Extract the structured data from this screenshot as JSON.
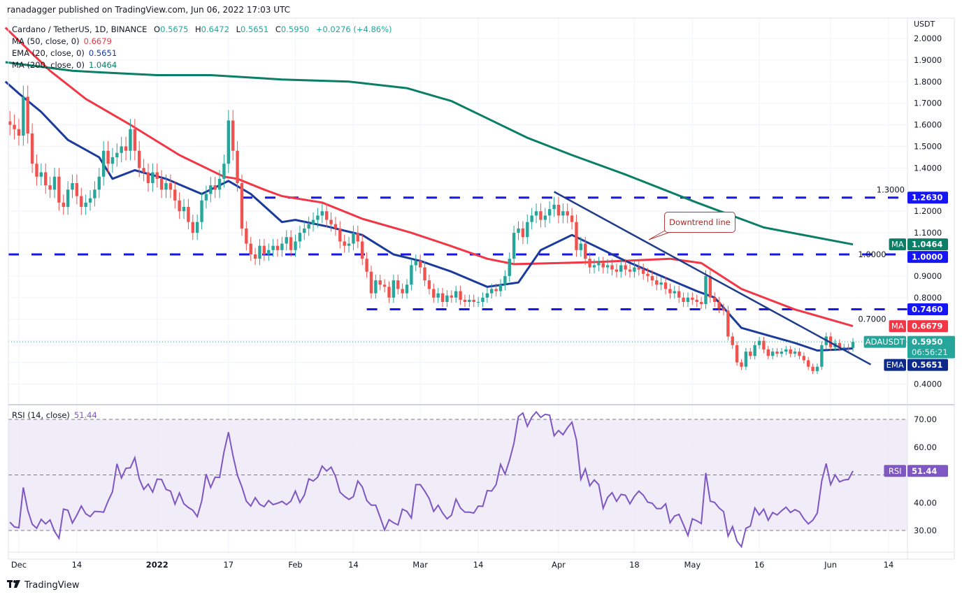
{
  "header": {
    "published": "ranadagger published on TradingView.com, Jun 06, 2022 17:03 UTC",
    "symbol": "Cardano / TetherUS, 1D, BINANCE",
    "open_label": "O",
    "open": "0.5675",
    "high_label": "H",
    "high": "0.6472",
    "low_label": "L",
    "low": "0.5651",
    "close_label": "C",
    "close": "0.5950",
    "change": "+0.0276 (+4.86%)"
  },
  "legend": [
    {
      "label": "MA (50, close, 0)",
      "value": "0.6679",
      "color": "#f23645"
    },
    {
      "label": "EMA (20, close, 0)",
      "value": "0.5651",
      "color": "#1a3a9c"
    },
    {
      "label": "MA (200, close, 0)",
      "value": "1.0464",
      "color": "#0b7e67"
    }
  ],
  "price_axis": {
    "unit": "USDT",
    "ticks": [
      "2.0000",
      "1.9000",
      "1.8000",
      "1.7000",
      "1.6000",
      "1.5000",
      "1.4000",
      "1.3000",
      "1.2000",
      "1.1000",
      "1.0000",
      "0.9000",
      "0.8000",
      "0.7000",
      "0.4000"
    ]
  },
  "price_tags": [
    {
      "name": "level-1263",
      "value": "1.2630",
      "price": 1.263,
      "color": "#1515f5"
    },
    {
      "name": "ma200",
      "label": "MA",
      "value": "1.0464",
      "price": 1.0464,
      "color": "#0b7e67"
    },
    {
      "name": "level-1000",
      "value": "1.0000",
      "price": 1.0,
      "color": "#1515f5"
    },
    {
      "name": "level-0746",
      "value": "0.7460",
      "price": 0.746,
      "color": "#1515f5"
    },
    {
      "name": "ma50",
      "label": "MA",
      "value": "0.6679",
      "price": 0.6679,
      "color": "#f23645"
    },
    {
      "name": "last-price",
      "label": "ADAUSDT",
      "value": "0.5950",
      "countdown": "06:56:21",
      "price": 0.595,
      "color": "#26a69a"
    },
    {
      "name": "ema20",
      "label": "EMA",
      "value": "0.5651",
      "price": 0.5651,
      "color": "#0d2a8a"
    }
  ],
  "x_axis": {
    "ticks": [
      {
        "label": "Dec",
        "date": "2021-12-01"
      },
      {
        "label": "14",
        "date": "2021-12-14"
      },
      {
        "label": "2022",
        "date": "2022-01-01",
        "bold": true
      },
      {
        "label": "17",
        "date": "2022-01-17"
      },
      {
        "label": "Feb",
        "date": "2022-02-01"
      },
      {
        "label": "14",
        "date": "2022-02-14"
      },
      {
        "label": "Mar",
        "date": "2022-03-01"
      },
      {
        "label": "14",
        "date": "2022-03-14"
      },
      {
        "label": "Apr",
        "date": "2022-04-01"
      },
      {
        "label": "18",
        "date": "2022-04-18"
      },
      {
        "label": "May",
        "date": "2022-05-01"
      },
      {
        "label": "16",
        "date": "2022-05-16"
      },
      {
        "label": "Jun",
        "date": "2022-06-01"
      },
      {
        "label": "14",
        "date": "2022-06-14"
      }
    ]
  },
  "rsi": {
    "label": "RSI (14, close)",
    "value": "51.44",
    "ticks": [
      "70.00",
      "60.00",
      "40.00",
      "30.00"
    ],
    "tag_label": "RSI",
    "color": "#7e57c2"
  },
  "annotation": {
    "text": "Downtrend line"
  },
  "footer": {
    "logo_mark": "17",
    "logo_text": "TradingView"
  },
  "colors": {
    "up": "#26a69a",
    "down": "#ef5350",
    "level": "#1515f5",
    "trendline": "#1f3c88",
    "rsi_band": "#ede9f7"
  },
  "chart_data": {
    "type": "candlestick",
    "interval": "1D",
    "first_date": "2021-11-29",
    "ylim": [
      0.35,
      2.05
    ],
    "closes": [
      1.6,
      1.58,
      1.55,
      1.73,
      1.56,
      1.42,
      1.36,
      1.38,
      1.32,
      1.3,
      1.36,
      1.24,
      1.22,
      1.3,
      1.33,
      1.27,
      1.22,
      1.24,
      1.26,
      1.3,
      1.36,
      1.48,
      1.42,
      1.45,
      1.47,
      1.5,
      1.48,
      1.58,
      1.48,
      1.4,
      1.38,
      1.33,
      1.38,
      1.35,
      1.3,
      1.33,
      1.3,
      1.25,
      1.2,
      1.22,
      1.15,
      1.1,
      1.15,
      1.25,
      1.28,
      1.32,
      1.3,
      1.35,
      1.42,
      1.62,
      1.48,
      1.33,
      1.12,
      1.05,
      1.0,
      0.98,
      1.04,
      1.0,
      1.02,
      1.04,
      1.02,
      1.05,
      1.08,
      1.02,
      1.06,
      1.1,
      1.12,
      1.14,
      1.16,
      1.18,
      1.2,
      1.16,
      1.14,
      1.12,
      1.06,
      1.04,
      1.05,
      1.1,
      1.06,
      0.98,
      0.92,
      0.82,
      0.88,
      0.86,
      0.85,
      0.8,
      0.88,
      0.84,
      0.82,
      0.86,
      0.95,
      0.97,
      0.94,
      0.88,
      0.84,
      0.8,
      0.82,
      0.78,
      0.81,
      0.8,
      0.83,
      0.79,
      0.78,
      0.79,
      0.78,
      0.78,
      0.8,
      0.82,
      0.84,
      0.83,
      0.86,
      0.9,
      0.98,
      1.1,
      1.12,
      1.08,
      1.15,
      1.18,
      1.2,
      1.16,
      1.18,
      1.21,
      1.23,
      1.18,
      1.2,
      1.18,
      1.15,
      1.02,
      1.05,
      0.98,
      0.94,
      0.95,
      0.96,
      0.94,
      0.95,
      0.93,
      0.92,
      0.95,
      0.93,
      0.92,
      0.94,
      0.93,
      0.91,
      0.9,
      0.88,
      0.86,
      0.87,
      0.84,
      0.82,
      0.83,
      0.8,
      0.78,
      0.8,
      0.79,
      0.78,
      0.77,
      0.9,
      0.8,
      0.78,
      0.75,
      0.74,
      0.62,
      0.58,
      0.5,
      0.48,
      0.55,
      0.53,
      0.58,
      0.6,
      0.56,
      0.53,
      0.55,
      0.54,
      0.55,
      0.56,
      0.54,
      0.55,
      0.53,
      0.51,
      0.48,
      0.46,
      0.48,
      0.58,
      0.62,
      0.57,
      0.59,
      0.57,
      0.57,
      0.5675,
      0.595
    ],
    "lines": [
      {
        "name": "MA (50, close, 0)",
        "color": "#f23645",
        "points": [
          [
            "2021-11-28",
            2.05
          ],
          [
            "2021-12-08",
            1.85
          ],
          [
            "2021-12-16",
            1.72
          ],
          [
            "2021-12-26",
            1.6
          ],
          [
            "2022-01-06",
            1.46
          ],
          [
            "2022-01-16",
            1.36
          ],
          [
            "2022-01-19",
            1.35
          ],
          [
            "2022-01-25",
            1.3
          ],
          [
            "2022-01-29",
            1.27
          ],
          [
            "2022-02-07",
            1.24
          ],
          [
            "2022-02-16",
            1.165
          ],
          [
            "2022-02-27",
            1.1
          ],
          [
            "2022-03-07",
            1.045
          ],
          [
            "2022-03-16",
            0.98
          ],
          [
            "2022-03-22",
            0.955
          ],
          [
            "2022-04-01",
            0.96
          ],
          [
            "2022-04-10",
            0.965
          ],
          [
            "2022-04-26",
            0.98
          ],
          [
            "2022-05-03",
            0.96
          ],
          [
            "2022-05-12",
            0.84
          ],
          [
            "2022-05-24",
            0.745
          ],
          [
            "2022-06-06",
            0.6679
          ]
        ]
      },
      {
        "name": "EMA (20, close, 0)",
        "color": "#1a3a9c",
        "points": [
          [
            "2021-11-28",
            1.8
          ],
          [
            "2021-12-01",
            1.745
          ],
          [
            "2021-12-06",
            1.66
          ],
          [
            "2021-12-12",
            1.53
          ],
          [
            "2021-12-19",
            1.45
          ],
          [
            "2021-12-22",
            1.35
          ],
          [
            "2021-12-27",
            1.39
          ],
          [
            "2022-01-03",
            1.35
          ],
          [
            "2022-01-11",
            1.28
          ],
          [
            "2022-01-17",
            1.34
          ],
          [
            "2022-01-22",
            1.28
          ],
          [
            "2022-01-29",
            1.15
          ],
          [
            "2022-02-01",
            1.16
          ],
          [
            "2022-02-08",
            1.13
          ],
          [
            "2022-02-16",
            1.09
          ],
          [
            "2022-02-23",
            1.0
          ],
          [
            "2022-03-01",
            0.97
          ],
          [
            "2022-03-08",
            0.92
          ],
          [
            "2022-03-16",
            0.85
          ],
          [
            "2022-03-23",
            0.87
          ],
          [
            "2022-03-26",
            0.96
          ],
          [
            "2022-03-28",
            1.02
          ],
          [
            "2022-04-04",
            1.09
          ],
          [
            "2022-04-10",
            1.03
          ],
          [
            "2022-04-16",
            0.97
          ],
          [
            "2022-04-24",
            0.9
          ],
          [
            "2022-05-02",
            0.83
          ],
          [
            "2022-05-06",
            0.8
          ],
          [
            "2022-05-12",
            0.66
          ],
          [
            "2022-05-18",
            0.625
          ],
          [
            "2022-05-24",
            0.59
          ],
          [
            "2022-05-29",
            0.555
          ],
          [
            "2022-06-03",
            0.56
          ],
          [
            "2022-06-06",
            0.5651
          ]
        ]
      },
      {
        "name": "MA (200, close, 0)",
        "color": "#0b7e67",
        "points": [
          [
            "2021-11-28",
            1.89
          ],
          [
            "2021-12-13",
            1.85
          ],
          [
            "2021-12-22",
            1.84
          ],
          [
            "2022-01-01",
            1.83
          ],
          [
            "2022-01-13",
            1.83
          ],
          [
            "2022-01-29",
            1.81
          ],
          [
            "2022-02-13",
            1.8
          ],
          [
            "2022-02-26",
            1.77
          ],
          [
            "2022-03-08",
            1.71
          ],
          [
            "2022-03-16",
            1.63
          ],
          [
            "2022-03-25",
            1.54
          ],
          [
            "2022-04-04",
            1.46
          ],
          [
            "2022-04-16",
            1.37
          ],
          [
            "2022-05-02",
            1.24
          ],
          [
            "2022-05-17",
            1.125
          ],
          [
            "2022-06-06",
            1.0464
          ]
        ]
      }
    ],
    "levels": [
      {
        "price": 1.263,
        "from": "2022-01-20"
      },
      {
        "price": 1.0,
        "from": "2021-11-28"
      },
      {
        "price": 0.746,
        "from": "2022-02-17"
      }
    ],
    "trendline": {
      "label": "Downtrend line",
      "from": [
        "2022-03-31",
        1.29
      ],
      "to": [
        "2022-06-10",
        0.49
      ]
    },
    "rsi": {
      "ylim": [
        20,
        75
      ],
      "bands": [
        30,
        70
      ],
      "values": [
        33,
        31.3,
        31.0,
        45.5,
        37.3,
        32.3,
        30.8,
        34,
        32.4,
        33.8,
        29.7,
        27.2,
        37.7,
        37.3,
        32.7,
        35.5,
        38.8,
        36,
        35,
        36.9,
        36.8,
        36.6,
        40.6,
        44,
        54,
        48.9,
        52.4,
        52.6,
        56.2,
        48.6,
        44.8,
        46.7,
        43.8,
        48.5,
        48.4,
        44.8,
        44.2,
        39.5,
        43.5,
        39.6,
        38.3,
        37.3,
        35,
        40.6,
        50.3,
        45.5,
        49.2,
        49.1,
        58.3,
        65.4,
        57,
        49.9,
        45.7,
        40.6,
        38.8,
        41.8,
        39.4,
        38.6,
        40.8,
        39.3,
        39.8,
        40.5,
        39.3,
        40.6,
        44.2,
        40.1,
        42.7,
        48.6,
        47.8,
        49.2,
        53.2,
        51.4,
        52.8,
        49.5,
        43.8,
        42.3,
        41.2,
        42.2,
        47.8,
        45.7,
        40.8,
        39.1,
        39.1,
        34.8,
        30.2,
        33.9,
        32.8,
        32,
        37.7,
        36.9,
        34.5,
        46.5,
        46.5,
        44.2,
        41.5,
        36.9,
        39.1,
        36.3,
        34.2,
        35.5,
        41.3,
        38.1,
        36.6,
        36.6,
        36.3,
        38.8,
        38.7,
        44.4,
        44.2,
        46.5,
        53.8,
        50.3,
        55.3,
        61.4,
        71,
        72.3,
        67.5,
        70.8,
        72.7,
        70.7,
        71.8,
        71.5,
        64.1,
        66,
        64.5,
        67,
        69,
        62.6,
        48.4,
        52.2,
        46.1,
        48.2,
        46.5,
        38,
        41.9,
        43.6,
        40.5,
        43,
        42.7,
        39.6,
        42.3,
        44.2,
        42.7,
        40.2,
        39.8,
        37.9,
        37.9,
        39.6,
        32.8,
        35.2,
        35.8,
        32.1,
        28.2,
        34.2,
        33.5,
        32.5,
        50.7,
        40.6,
        40.1,
        38.1,
        36.8,
        28,
        31.4,
        26.2,
        24.2,
        30.8,
        31.6,
        38.1,
        35.6,
        37.7,
        33.7,
        36.5,
        35.6,
        37.1,
        38.4,
        36.5,
        37.5,
        36.7,
        34.2,
        32.4,
        33.7,
        36.3,
        47.8,
        54.1,
        46.5,
        50,
        47.5,
        48.2,
        48.4,
        51.44
      ]
    }
  }
}
